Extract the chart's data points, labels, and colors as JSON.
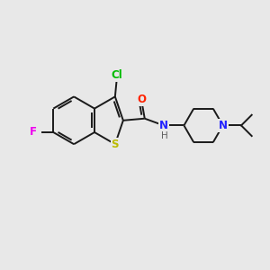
{
  "bg_color": "#e8e8e8",
  "bond_color": "#1a1a1a",
  "bond_width": 1.4,
  "atom_labels": {
    "Cl": {
      "color": "#00bb00",
      "fontsize": 8.5,
      "fontweight": "bold"
    },
    "O": {
      "color": "#ff2200",
      "fontsize": 8.5,
      "fontweight": "bold"
    },
    "N": {
      "color": "#2222ff",
      "fontsize": 8.5,
      "fontweight": "bold"
    },
    "H": {
      "color": "#606060",
      "fontsize": 7.5,
      "fontweight": "normal"
    },
    "S": {
      "color": "#bbbb00",
      "fontsize": 8.5,
      "fontweight": "bold"
    },
    "F": {
      "color": "#ee00ee",
      "fontsize": 8.5,
      "fontweight": "bold"
    }
  }
}
